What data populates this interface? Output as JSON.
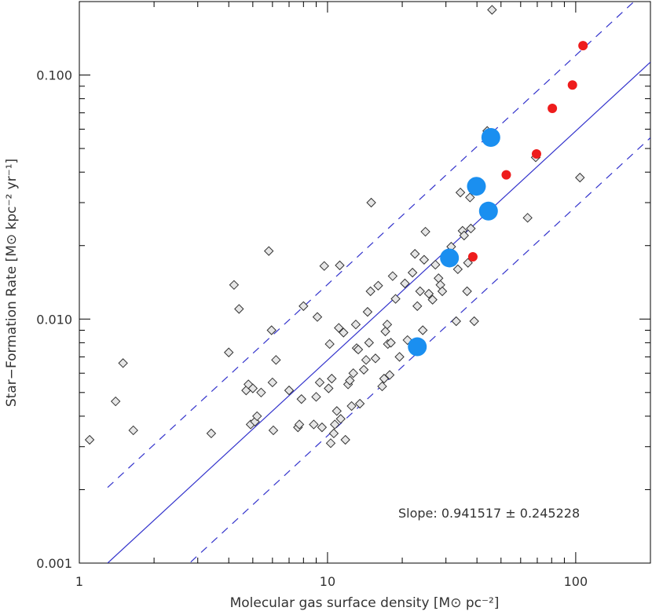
{
  "chart_data": {
    "type": "scatter",
    "xscale": "log",
    "yscale": "log",
    "xlim": [
      1,
      200
    ],
    "ylim": [
      0.001,
      0.2
    ],
    "xlabel": "Molecular gas surface density [M⊙ pc⁻²]",
    "ylabel": "Star−Formation Rate [M⊙ kpc⁻² yr⁻¹]",
    "xticks": [
      1,
      10,
      100
    ],
    "xtick_labels": [
      "1",
      "10",
      "100"
    ],
    "yticks": [
      0.001,
      0.01,
      0.1
    ],
    "ytick_labels": [
      "0.001",
      "0.010",
      "0.100"
    ],
    "annotation": "Slope: 0.941517 ± 0.245228",
    "fit": {
      "slope": 0.941517,
      "slope_error": 0.245228,
      "line_points": [
        [
          1.3,
          0.001
        ],
        [
          200,
          0.113
        ]
      ],
      "offset_dex": 0.31,
      "color": "#3333cc"
    },
    "series": [
      {
        "marker": "diamond",
        "color": "#999999",
        "points": [
          [
            1.1,
            0.0032
          ],
          [
            1.4,
            0.0046
          ],
          [
            1.5,
            0.0066
          ],
          [
            1.65,
            0.0035
          ],
          [
            3.4,
            0.0034
          ],
          [
            4.0,
            0.0073
          ],
          [
            4.2,
            0.0138
          ],
          [
            4.4,
            0.011
          ],
          [
            4.7,
            0.0051
          ],
          [
            4.8,
            0.0054
          ],
          [
            4.9,
            0.0037
          ],
          [
            5.0,
            0.0052
          ],
          [
            5.1,
            0.0038
          ],
          [
            5.2,
            0.004
          ],
          [
            5.4,
            0.005
          ],
          [
            5.8,
            0.019
          ],
          [
            5.95,
            0.009
          ],
          [
            6.0,
            0.0055
          ],
          [
            6.05,
            0.0035
          ],
          [
            6.2,
            0.0068
          ],
          [
            7.0,
            0.0051
          ],
          [
            7.6,
            0.0036
          ],
          [
            7.7,
            0.0037
          ],
          [
            7.85,
            0.0047
          ],
          [
            8.0,
            0.0113
          ],
          [
            8.8,
            0.0037
          ],
          [
            9.0,
            0.0048
          ],
          [
            9.1,
            0.0102
          ],
          [
            9.3,
            0.0055
          ],
          [
            9.5,
            0.0036
          ],
          [
            9.7,
            0.0165
          ],
          [
            10.1,
            0.0052
          ],
          [
            10.2,
            0.0079
          ],
          [
            10.3,
            0.0031
          ],
          [
            10.4,
            0.0057
          ],
          [
            10.6,
            0.0034
          ],
          [
            10.7,
            0.0037
          ],
          [
            10.9,
            0.0042
          ],
          [
            11.1,
            0.0092
          ],
          [
            11.2,
            0.0166
          ],
          [
            11.3,
            0.0039
          ],
          [
            11.6,
            0.0088
          ],
          [
            11.8,
            0.0032
          ],
          [
            12.1,
            0.0054
          ],
          [
            12.3,
            0.0056
          ],
          [
            12.5,
            0.0044
          ],
          [
            12.7,
            0.006
          ],
          [
            13.0,
            0.0095
          ],
          [
            13.1,
            0.0076
          ],
          [
            13.3,
            0.0075
          ],
          [
            13.5,
            0.0045
          ],
          [
            14.0,
            0.0062
          ],
          [
            14.3,
            0.0068
          ],
          [
            14.5,
            0.0107
          ],
          [
            14.7,
            0.008
          ],
          [
            14.9,
            0.013
          ],
          [
            15.0,
            0.03
          ],
          [
            15.6,
            0.0069
          ],
          [
            16.0,
            0.0137
          ],
          [
            16.6,
            0.0053
          ],
          [
            16.9,
            0.0057
          ],
          [
            17.1,
            0.0089
          ],
          [
            17.4,
            0.0095
          ],
          [
            17.5,
            0.0079
          ],
          [
            17.8,
            0.0059
          ],
          [
            18.0,
            0.008
          ],
          [
            18.3,
            0.015
          ],
          [
            18.8,
            0.0121
          ],
          [
            19.5,
            0.007
          ],
          [
            20.5,
            0.014
          ],
          [
            21.0,
            0.0082
          ],
          [
            22.0,
            0.0155
          ],
          [
            22.5,
            0.0185
          ],
          [
            23.0,
            0.0113
          ],
          [
            23.6,
            0.013
          ],
          [
            24.2,
            0.009
          ],
          [
            24.5,
            0.0175
          ],
          [
            24.8,
            0.0228
          ],
          [
            25.6,
            0.0127
          ],
          [
            26.5,
            0.012
          ],
          [
            27.2,
            0.0167
          ],
          [
            28.0,
            0.0147
          ],
          [
            28.5,
            0.0138
          ],
          [
            29.0,
            0.013
          ],
          [
            30.5,
            0.0178
          ],
          [
            31.5,
            0.0198
          ],
          [
            33.0,
            0.0098
          ],
          [
            33.5,
            0.016
          ],
          [
            34.3,
            0.033
          ],
          [
            35.0,
            0.023
          ],
          [
            35.5,
            0.022
          ],
          [
            36.5,
            0.013
          ],
          [
            36.8,
            0.017
          ],
          [
            37.5,
            0.0315
          ],
          [
            37.8,
            0.0235
          ],
          [
            39.0,
            0.0098
          ],
          [
            44.0,
            0.059
          ],
          [
            46.0,
            0.185
          ],
          [
            64.0,
            0.026
          ],
          [
            69.0,
            0.046
          ],
          [
            104.0,
            0.038
          ]
        ]
      },
      {
        "marker": "circle-small",
        "color": "#ee1c1c",
        "points": [
          [
            38.5,
            0.018
          ],
          [
            52.5,
            0.039
          ],
          [
            69.5,
            0.0475
          ],
          [
            80.5,
            0.073
          ],
          [
            97.0,
            0.091
          ],
          [
            107.0,
            0.132
          ]
        ]
      },
      {
        "marker": "circle-large",
        "color": "#1a8ff0",
        "points": [
          [
            23.0,
            0.0077
          ],
          [
            31.0,
            0.0178
          ],
          [
            39.8,
            0.035
          ],
          [
            44.5,
            0.0277
          ],
          [
            45.5,
            0.0555
          ]
        ]
      }
    ]
  }
}
